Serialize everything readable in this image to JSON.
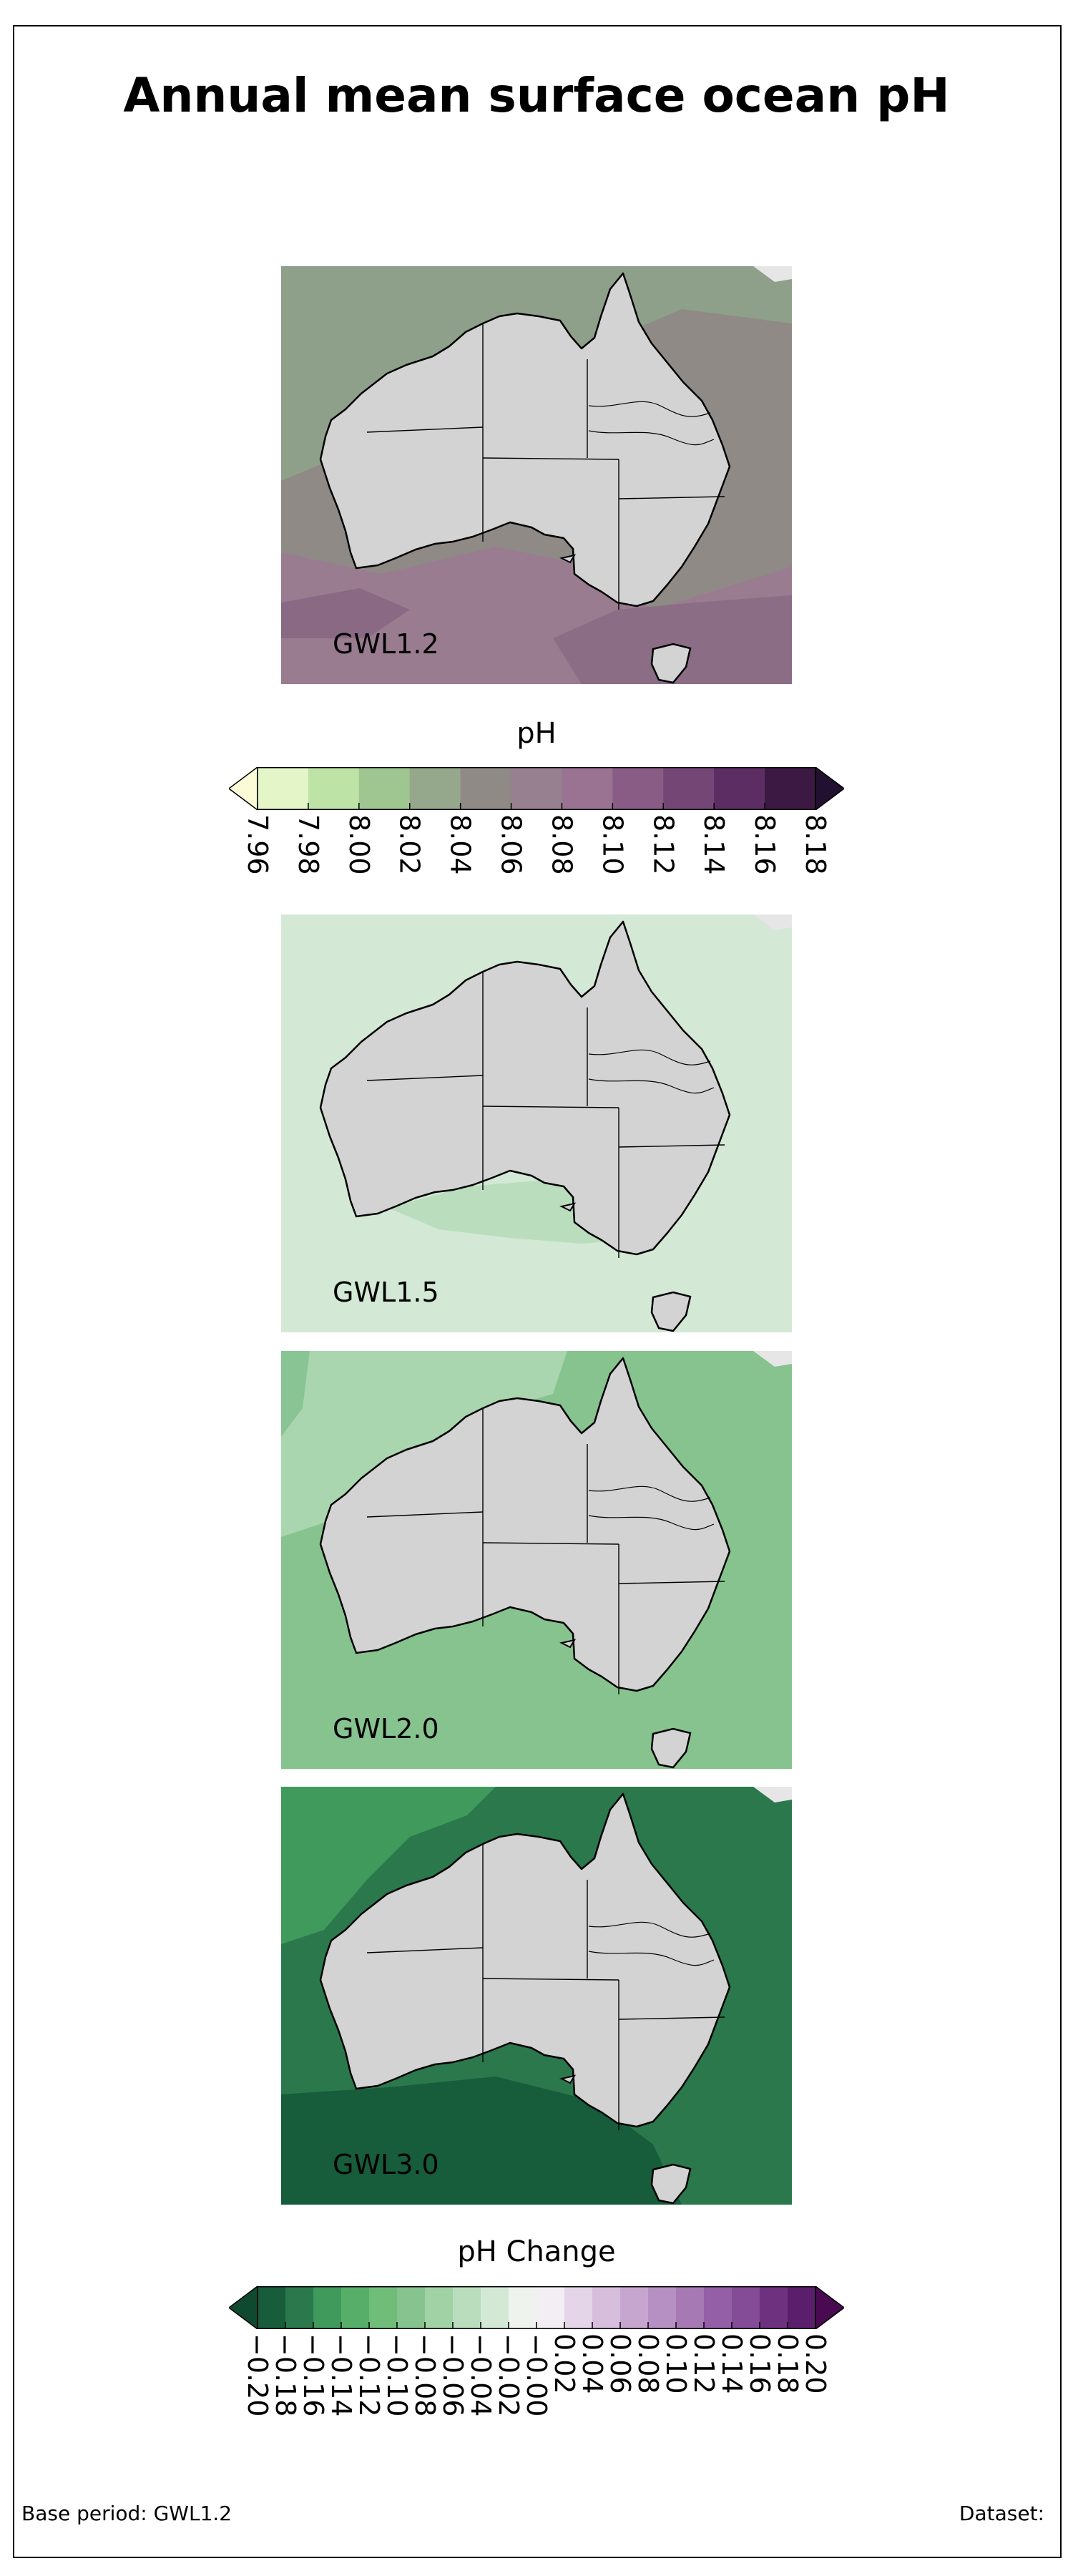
{
  "figure": {
    "title": "Annual mean surface ocean pH"
  },
  "panels": [
    {
      "label": "GWL1.2",
      "ocean_color": "#8f8a86",
      "accent_colors": [
        "#8ea38a",
        "#9a7a91",
        "#7b5a78"
      ]
    },
    {
      "label": "GWL1.5",
      "ocean_color": "#d3e8d5",
      "accent_colors": [
        "#b9ddbd"
      ]
    },
    {
      "label": "GWL2.0",
      "ocean_color": "#86c38f",
      "accent_colors": [
        "#a9d6ae",
        "#75b882"
      ]
    },
    {
      "label": "GWL3.0",
      "ocean_color": "#2b784c",
      "accent_colors": [
        "#3f9a5b",
        "#175c3b"
      ]
    }
  ],
  "colorbar_ph": {
    "title": "pH",
    "ticks": [
      "7.96",
      "7.98",
      "8.00",
      "8.02",
      "8.04",
      "8.06",
      "8.08",
      "8.10",
      "8.12",
      "8.14",
      "8.16",
      "8.18"
    ],
    "under_color": "#fbfbd8",
    "over_color": "#221030",
    "colors": [
      "#e4f5c8",
      "#bde3a6",
      "#9fc590",
      "#96a88b",
      "#8f8a86",
      "#978090",
      "#9a7392",
      "#885c84",
      "#734676",
      "#5b2d62",
      "#3b1943"
    ]
  },
  "colorbar_change": {
    "title": "pH Change",
    "ticks": [
      "−0.20",
      "−0.18",
      "−0.16",
      "−0.14",
      "−0.12",
      "−0.10",
      "−0.08",
      "−0.06",
      "−0.04",
      "−0.02",
      "−0.00",
      "0.02",
      "0.04",
      "0.06",
      "0.08",
      "0.10",
      "0.12",
      "0.14",
      "0.16",
      "0.18",
      "0.20"
    ],
    "under_color": "#0f4a30",
    "over_color": "#4a0a52",
    "colors": [
      "#175c3b",
      "#2b784c",
      "#3f9a5b",
      "#56ae69",
      "#6fbd79",
      "#86c38f",
      "#a0d2a5",
      "#b9ddbd",
      "#d3e8d5",
      "#eef3ee",
      "#f3eef3",
      "#e5d5e8",
      "#d6bedc",
      "#c6a6ce",
      "#b690c2",
      "#a679b5",
      "#945fa6",
      "#844b97",
      "#6d317f",
      "#5a1e6c"
    ]
  },
  "footer": {
    "base_period": "Base period: GWL1.2",
    "dataset": "Dataset:"
  }
}
